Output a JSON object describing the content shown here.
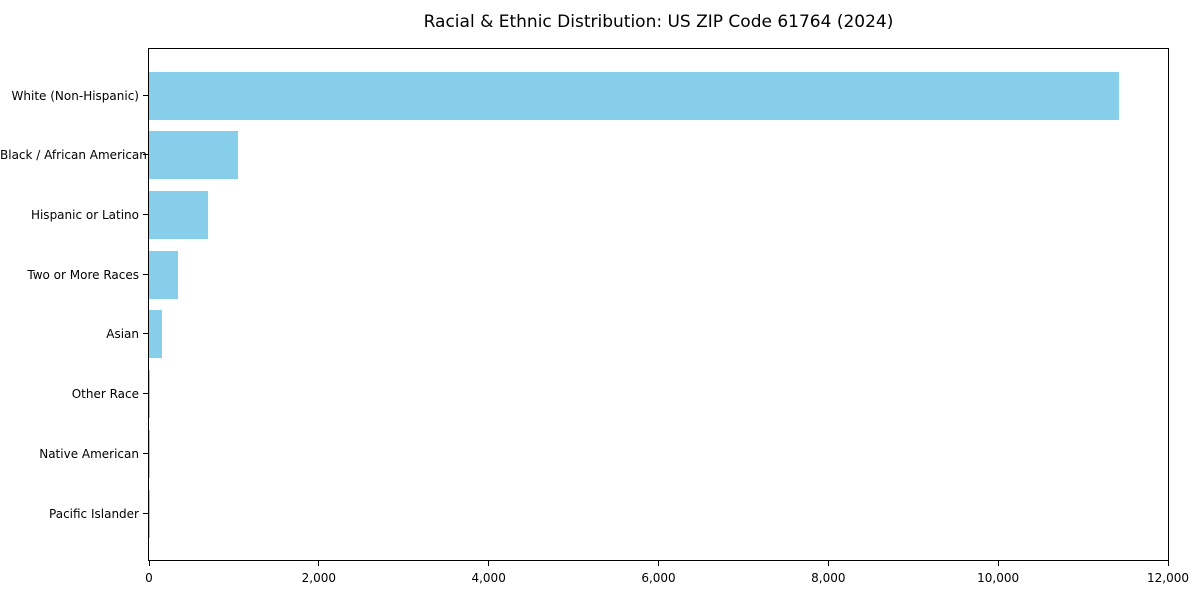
{
  "chart_data": {
    "type": "bar",
    "orientation": "horizontal",
    "title": "Racial & Ethnic Distribution: US ZIP Code 61764 (2024)",
    "xlabel": "",
    "ylabel": "",
    "categories": [
      "White (Non-Hispanic)",
      "Black / African American",
      "Hispanic or Latino",
      "Two or More Races",
      "Asian",
      "Other Race",
      "Native American",
      "Pacific Islander"
    ],
    "values": [
      11420,
      1045,
      690,
      340,
      155,
      15,
      8,
      2
    ],
    "xlim": [
      0,
      12000
    ],
    "x_ticks": [
      0,
      2000,
      4000,
      6000,
      8000,
      10000,
      12000
    ],
    "x_tick_labels": [
      "0",
      "2,000",
      "4,000",
      "6,000",
      "8,000",
      "10,000",
      "12,000"
    ],
    "bar_color": "#87CEEB",
    "axis_color": "#000000",
    "grid": false,
    "legend": false
  }
}
